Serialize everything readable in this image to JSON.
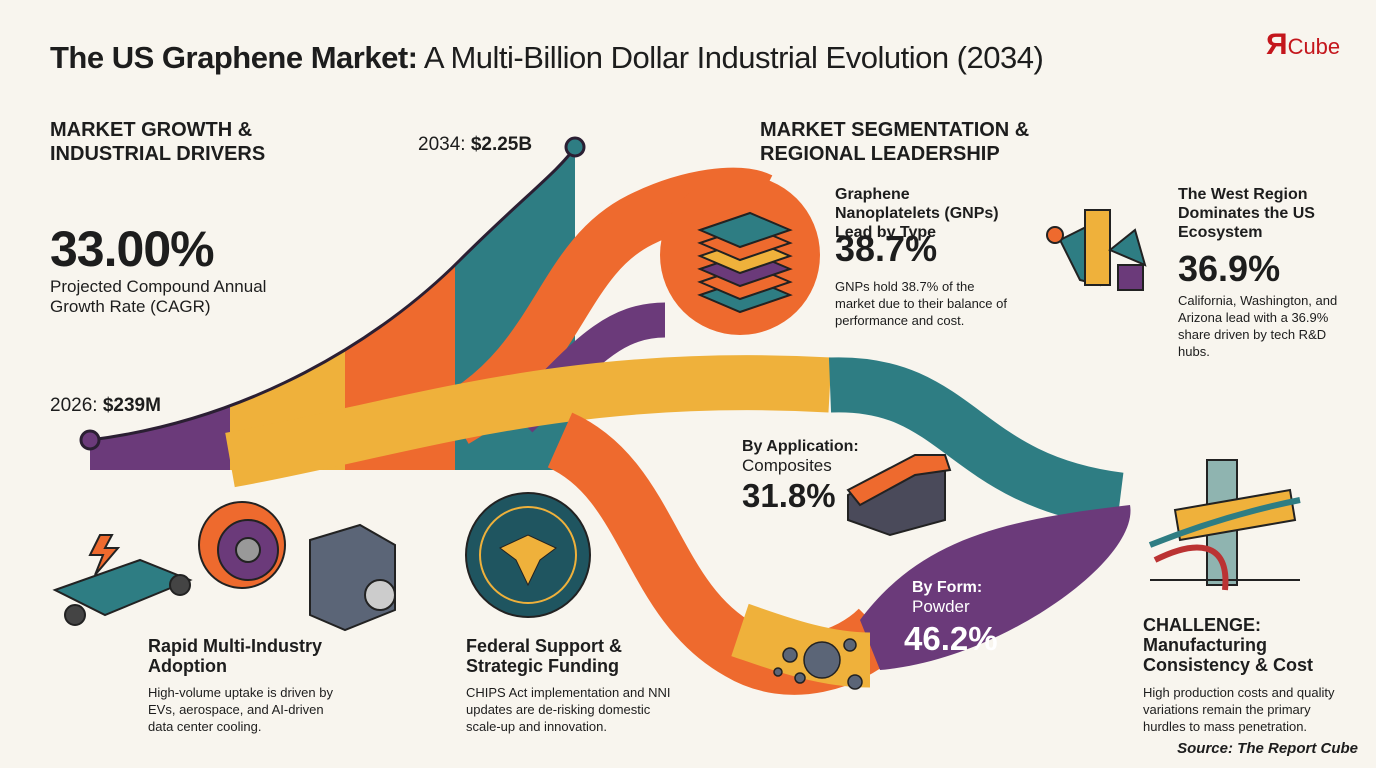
{
  "header": {
    "title_bold": "The US Graphene Market:",
    "title_rest": "A Multi-Billion Dollar Industrial Evolution (2034)",
    "logo_mark": "Я",
    "logo_text": "Cube"
  },
  "growth": {
    "heading": "MARKET GROWTH & INDUSTRIAL DRIVERS",
    "cagr": "33.00%",
    "cagr_label": "Projected Compound Annual Growth Rate (CAGR)",
    "start_year": "2026:",
    "start_value": "$239M",
    "end_year": "2034:",
    "end_value": "$2.25B"
  },
  "segmentation": {
    "heading": "MARKET SEGMENTATION & REGIONAL LEADERSHIP",
    "type": {
      "title": "Graphene Nanoplatelets (GNPs) Lead by Type",
      "value": "38.7%",
      "description": "GNPs hold 38.7% of the market due to their balance of performance and cost."
    },
    "region": {
      "title": "The West Region Dominates the US Ecosystem",
      "value": "36.9%",
      "description": "California, Washington, and Arizona lead with a 36.9% share driven by tech R&D hubs."
    },
    "application": {
      "label": "By Application:",
      "name": "Composites",
      "value": "31.8%"
    },
    "form": {
      "label": "By Form:",
      "name": "Powder",
      "value": "46.2%"
    }
  },
  "drivers": {
    "adoption": {
      "title": "Rapid Multi-Industry Adoption",
      "description": "High-volume uptake is driven by EVs, aerospace, and AI-driven data center cooling."
    },
    "federal": {
      "title": "Federal Support & Strategic Funding",
      "description": "CHIPS Act implementation and NNI updates are de-risking domestic scale-up and innovation."
    }
  },
  "challenge": {
    "title": "CHALLENGE: Manufacturing Consistency & Cost",
    "description": "High production costs and quality variations remain the primary hurdles to mass penetration."
  },
  "source": "Source: The Report Cube"
}
